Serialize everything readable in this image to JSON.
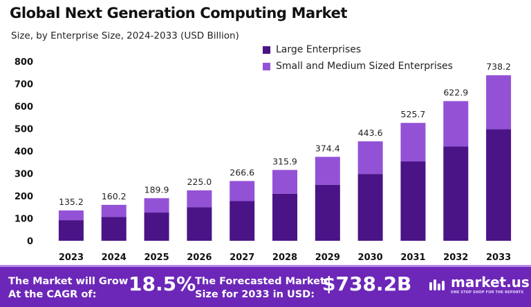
{
  "header": {
    "title": "Global Next Generation Computing Market",
    "subtitle": "Size, by Enterprise Size, 2024-2033 (USD Billion)"
  },
  "colors": {
    "large": "#4a1486",
    "small_medium": "#9352d6",
    "footer_bg": "#6c27b8",
    "footer_border": "#b58ae8"
  },
  "chart_data": {
    "type": "bar",
    "stacked": true,
    "categories": [
      "2023",
      "2024",
      "2025",
      "2026",
      "2027",
      "2028",
      "2029",
      "2030",
      "2031",
      "2032",
      "2033"
    ],
    "series": [
      {
        "name": "Large Enterprises",
        "color": "#4a1486",
        "values": [
          92,
          106,
          126,
          150,
          177,
          210,
          250,
          298,
          354,
          420,
          497
        ]
      },
      {
        "name": "Small and Medium Sized Enterprises",
        "color": "#9352d6",
        "values": [
          43.2,
          54.2,
          63.9,
          75.0,
          89.6,
          105.9,
          124.4,
          145.6,
          171.7,
          202.9,
          241.2
        ]
      }
    ],
    "totals": [
      "135.2",
      "160.2",
      "189.9",
      "225.0",
      "266.6",
      "315.9",
      "374.4",
      "443.6",
      "525.7",
      "622.9",
      "738.2"
    ],
    "yticks": [
      "0",
      "100",
      "200",
      "300",
      "400",
      "500",
      "600",
      "700",
      "800"
    ],
    "ylim": [
      0,
      800
    ],
    "grid": false,
    "legend_position": "top-right"
  },
  "footer": {
    "grow_line1": "The Market will Grow",
    "grow_line2": "At the CAGR of:",
    "cagr": "18.5%",
    "forecast_line1": "The Forecasted Market",
    "forecast_line2": "Size for 2033 in USD:",
    "forecast_value": "$738.2B",
    "brand": "market.us",
    "brand_tagline": "ONE STOP SHOP FOR THE REPORTS"
  }
}
